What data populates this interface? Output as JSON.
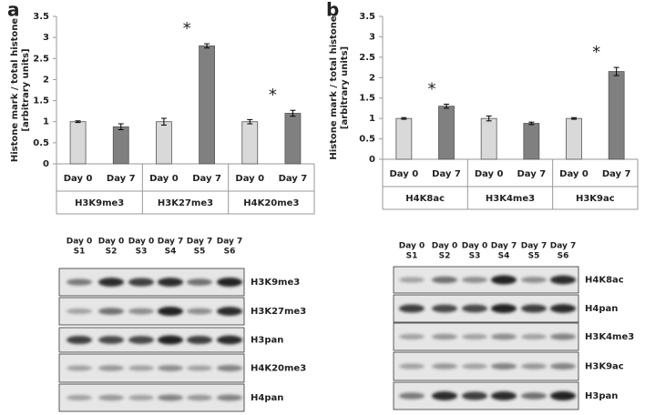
{
  "chart_data": [
    {
      "type": "bar",
      "panel_label": "a",
      "ylabel": [
        "Histone mark / total histone",
        "[arbitrary units]"
      ],
      "categories": [
        "H3K9me3",
        "H3K27me3",
        "H4K20me3"
      ],
      "series": [
        {
          "name": "Day 0",
          "color": "#d9d9d9",
          "values": [
            1.0,
            1.0,
            1.0
          ],
          "errors": [
            0.02,
            0.08,
            0.05
          ]
        },
        {
          "name": "Day 7",
          "color": "#808080",
          "values": [
            0.88,
            2.8,
            1.2
          ],
          "errors": [
            0.07,
            0.05,
            0.07
          ],
          "significant": [
            false,
            true,
            true
          ]
        }
      ],
      "annotation": "*",
      "ylim": [
        0,
        3.5
      ],
      "yticks": [
        0,
        0.5,
        1,
        1.5,
        2,
        2.5,
        3,
        3.5
      ]
    },
    {
      "type": "bar",
      "panel_label": "b",
      "ylabel": [
        "Histone mark / total histone",
        "[arbitrary units]"
      ],
      "categories": [
        "H4K8ac",
        "H3K4me3",
        "H3K9ac"
      ],
      "series": [
        {
          "name": "Day 0",
          "color": "#d9d9d9",
          "values": [
            1.0,
            1.0,
            1.0
          ],
          "errors": [
            0.02,
            0.06,
            0.02
          ]
        },
        {
          "name": "Day 7",
          "color": "#808080",
          "values": [
            1.3,
            0.88,
            2.15
          ],
          "errors": [
            0.05,
            0.03,
            0.1
          ],
          "significant": [
            true,
            false,
            true
          ]
        }
      ],
      "annotation": "*",
      "ylim": [
        0,
        3.5
      ],
      "yticks": [
        0,
        0.5,
        1,
        1.5,
        2,
        2.5,
        3,
        3.5
      ]
    }
  ],
  "blots": [
    {
      "columns": [
        {
          "day": "Day 0",
          "sample": "S1"
        },
        {
          "day": "Day 0",
          "sample": "S2"
        },
        {
          "day": "Day 0",
          "sample": "S3"
        },
        {
          "day": "Day 7",
          "sample": "S4"
        },
        {
          "day": "Day 7",
          "sample": "S5"
        },
        {
          "day": "Day 7",
          "sample": "S6"
        }
      ],
      "rows": [
        "H3K9me3",
        "H3K27me3",
        "H3pan",
        "H4K20me3",
        "H4pan"
      ]
    },
    {
      "columns": [
        {
          "day": "Day 0",
          "sample": "S1"
        },
        {
          "day": "Day 0",
          "sample": "S2"
        },
        {
          "day": "Day 0",
          "sample": "S3"
        },
        {
          "day": "Day 7",
          "sample": "S4"
        },
        {
          "day": "Day 7",
          "sample": "S5"
        },
        {
          "day": "Day 7",
          "sample": "S6"
        }
      ],
      "rows": [
        "H4K8ac",
        "H4pan",
        "H3K4me3",
        "H3K9ac",
        "H3pan"
      ]
    }
  ]
}
